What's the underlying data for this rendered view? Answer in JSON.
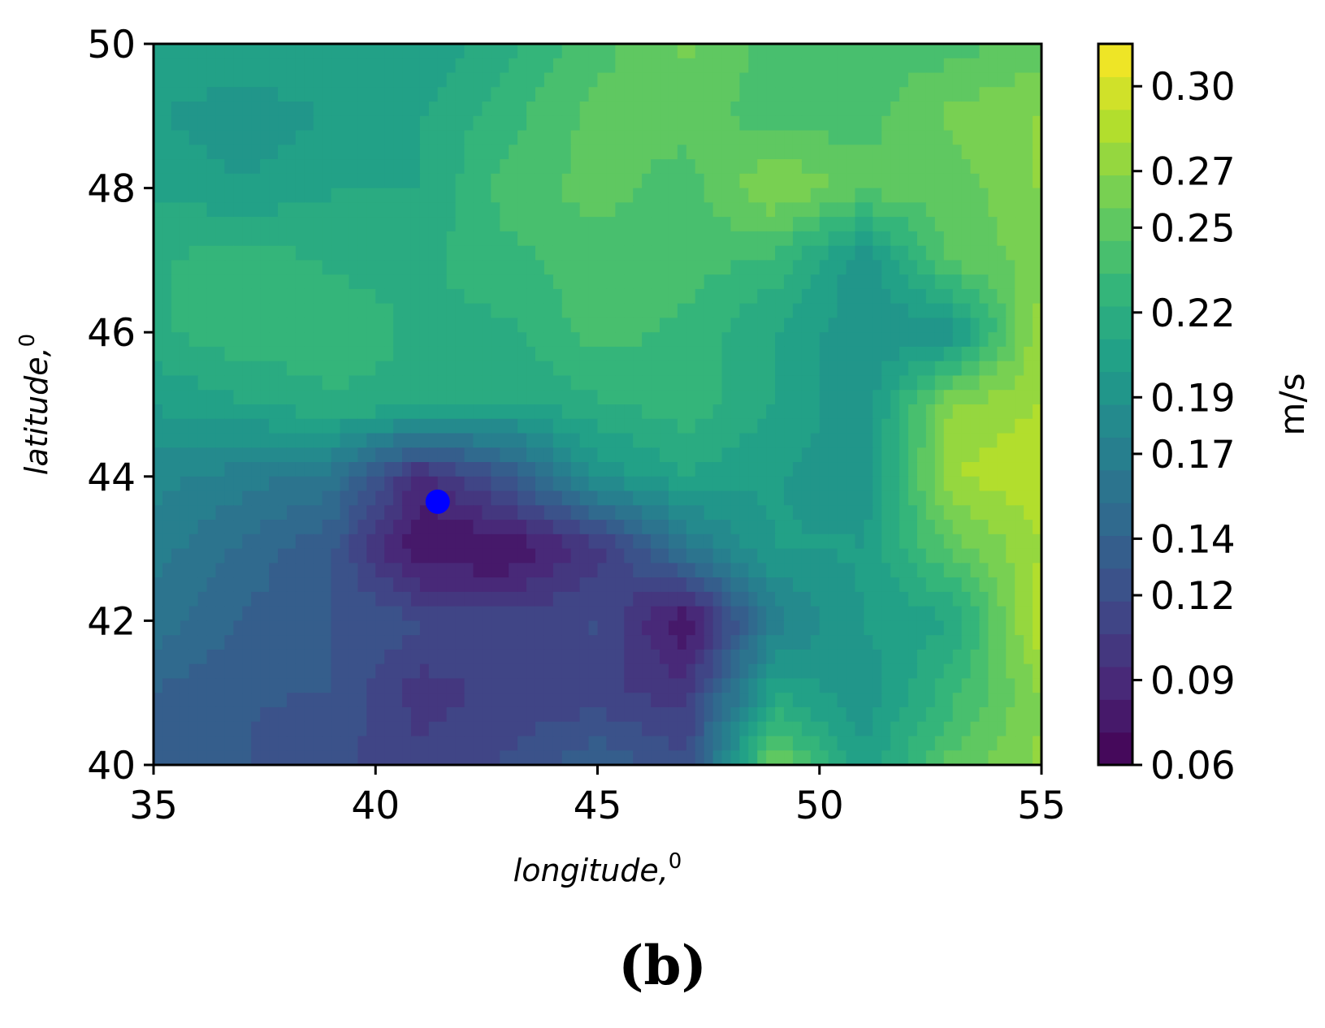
{
  "chart_data": {
    "type": "heatmap",
    "subtype": "filled-contour",
    "colormap": "viridis",
    "xlabel": "longitude,",
    "xlabel_superscript": "0",
    "ylabel": "latitude,",
    "ylabel_superscript": "0",
    "xlim": [
      35,
      55
    ],
    "ylim": [
      40,
      50
    ],
    "xticks": [
      35,
      40,
      45,
      50,
      55
    ],
    "yticks": [
      40,
      42,
      44,
      46,
      48,
      50
    ],
    "colorbar": {
      "label": "m/s",
      "vmin": 0.06,
      "vmax": 0.315,
      "ticks": [
        0.06,
        0.09,
        0.12,
        0.14,
        0.17,
        0.19,
        0.22,
        0.25,
        0.27,
        0.3
      ],
      "tick_labels": [
        "0.06",
        "0.09",
        "0.12",
        "0.14",
        "0.17",
        "0.19",
        "0.22",
        "0.25",
        "0.27",
        "0.30"
      ],
      "levels": 22
    },
    "grid": false,
    "marker": {
      "lon": 41.4,
      "lat": 43.65,
      "color": "#0000ff"
    },
    "field_grid": {
      "lons": [
        35,
        37,
        39,
        41,
        43,
        45,
        47,
        49,
        51,
        53,
        55
      ],
      "lats": [
        50,
        49,
        48,
        47,
        46,
        45,
        44,
        43,
        42,
        41,
        40
      ],
      "values": [
        [
          0.21,
          0.21,
          0.21,
          0.2,
          0.22,
          0.24,
          0.26,
          0.24,
          0.24,
          0.24,
          0.25
        ],
        [
          0.2,
          0.19,
          0.2,
          0.21,
          0.23,
          0.25,
          0.25,
          0.24,
          0.24,
          0.26,
          0.27
        ],
        [
          0.21,
          0.2,
          0.21,
          0.21,
          0.24,
          0.25,
          0.24,
          0.27,
          0.25,
          0.25,
          0.27
        ],
        [
          0.22,
          0.23,
          0.22,
          0.22,
          0.23,
          0.24,
          0.24,
          0.23,
          0.19,
          0.25,
          0.26
        ],
        [
          0.22,
          0.23,
          0.23,
          0.22,
          0.22,
          0.24,
          0.23,
          0.21,
          0.19,
          0.19,
          0.28
        ],
        [
          0.2,
          0.21,
          0.22,
          0.22,
          0.21,
          0.22,
          0.23,
          0.21,
          0.19,
          0.27,
          0.28
        ],
        [
          0.18,
          0.17,
          0.16,
          0.09,
          0.13,
          0.19,
          0.21,
          0.2,
          0.19,
          0.28,
          0.29
        ],
        [
          0.17,
          0.15,
          0.13,
          0.07,
          0.07,
          0.1,
          0.16,
          0.2,
          0.2,
          0.25,
          0.28
        ],
        [
          0.16,
          0.14,
          0.13,
          0.12,
          0.11,
          0.12,
          0.07,
          0.17,
          0.2,
          0.21,
          0.29
        ],
        [
          0.14,
          0.13,
          0.13,
          0.1,
          0.11,
          0.11,
          0.1,
          0.21,
          0.19,
          0.23,
          0.27
        ],
        [
          0.13,
          0.13,
          0.12,
          0.11,
          0.12,
          0.14,
          0.12,
          0.26,
          0.2,
          0.25,
          0.27
        ]
      ]
    }
  },
  "figure": {
    "panel_label": "(b)"
  }
}
